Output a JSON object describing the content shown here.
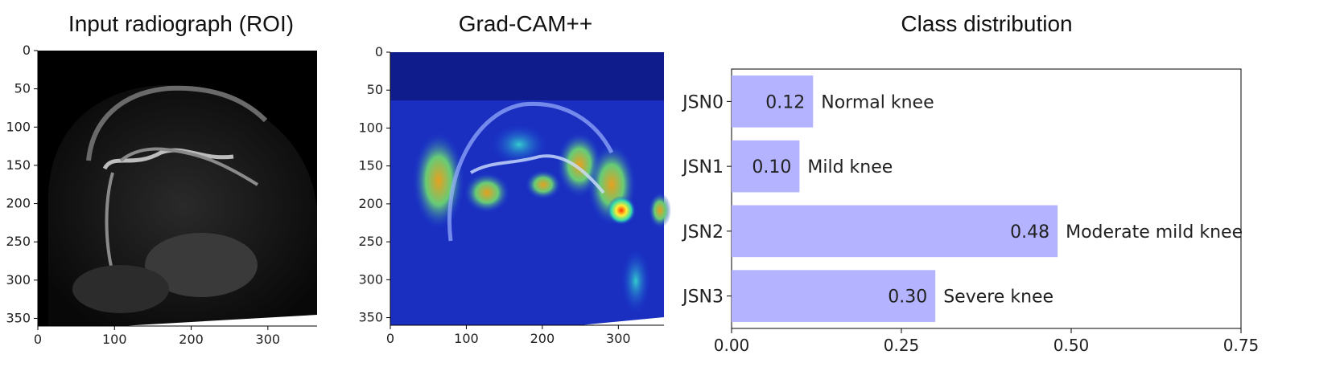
{
  "panels": {
    "input_title": "Input radiograph (ROI)",
    "gradcam_title": "Grad-CAM++",
    "image_ticks_x": [
      "0",
      "100",
      "200",
      "300"
    ],
    "image_ticks_y": [
      "0",
      "50",
      "100",
      "150",
      "200",
      "250",
      "300",
      "350"
    ]
  },
  "chart_data": {
    "type": "bar",
    "orientation": "horizontal",
    "title": "Class distribution",
    "categories": [
      "JSN0",
      "JSN1",
      "JSN2",
      "JSN3"
    ],
    "values": [
      0.12,
      0.1,
      0.48,
      0.3
    ],
    "value_labels": [
      "0.12",
      "0.10",
      "0.48",
      "0.30"
    ],
    "annotations": [
      "Normal knee",
      "Mild knee",
      "Moderate mild knee",
      "Severe knee"
    ],
    "xlim": [
      0,
      0.75
    ],
    "xticks": [
      "0.00",
      "0.25",
      "0.50",
      "0.75"
    ],
    "xlabel": "",
    "ylabel": "",
    "bar_color": "#b3b3ff",
    "grid": false
  }
}
